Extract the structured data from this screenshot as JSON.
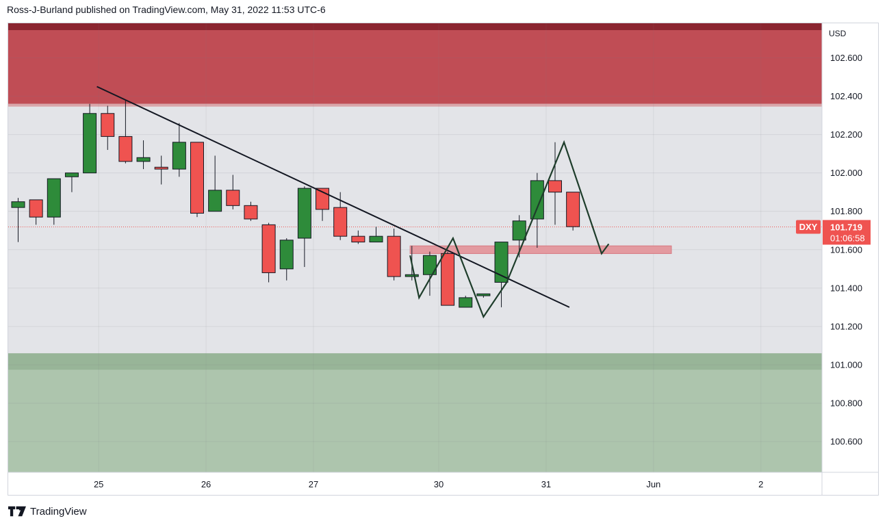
{
  "header": {
    "title": "Ross-J-Burland published on TradingView.com, May 31, 2022 11:53 UTC-6"
  },
  "footer": {
    "brand": "TradingView",
    "logo_icon": "tradingview-logo-icon"
  },
  "colors": {
    "up": "#2e8b3a",
    "down": "#ef5350",
    "wick": "#131722",
    "resistance_zone": "#c04d55",
    "resistance_top": "#8b2530",
    "support_zone": "#adc5ad",
    "support_top": "#98b598",
    "support_line_zone": "#e39aa0",
    "badge": "#ef5350",
    "plot_bg": "#e3e4e8"
  },
  "chart_data": {
    "type": "candlestick",
    "symbol": "DXY",
    "currency": "USD",
    "last_price": "101.719",
    "countdown": "01:06:58",
    "ylim": [
      100.44,
      102.78
    ],
    "y_ticks": [
      "102.600",
      "102.400",
      "102.200",
      "102.000",
      "101.800",
      "101.600",
      "101.400",
      "101.200",
      "101.000",
      "100.800",
      "100.600"
    ],
    "x_tick_labels": [
      "25",
      "26",
      "27",
      "30",
      "31",
      "Jun",
      "2"
    ],
    "x_tick_bar_index": [
      4.5,
      10.5,
      16.5,
      23.5,
      29.5,
      35.5,
      41.5
    ],
    "candles": [
      {
        "o": 101.82,
        "h": 101.87,
        "l": 101.64,
        "c": 101.85
      },
      {
        "o": 101.86,
        "h": 101.86,
        "l": 101.73,
        "c": 101.77
      },
      {
        "o": 101.77,
        "h": 101.97,
        "l": 101.73,
        "c": 101.97
      },
      {
        "o": 101.98,
        "h": 102.0,
        "l": 101.9,
        "c": 102.0
      },
      {
        "o": 102.0,
        "h": 102.36,
        "l": 102.0,
        "c": 102.31
      },
      {
        "o": 102.31,
        "h": 102.35,
        "l": 102.12,
        "c": 102.19
      },
      {
        "o": 102.19,
        "h": 102.38,
        "l": 102.05,
        "c": 102.06
      },
      {
        "o": 102.06,
        "h": 102.17,
        "l": 102.02,
        "c": 102.08
      },
      {
        "o": 102.03,
        "h": 102.09,
        "l": 101.94,
        "c": 102.02
      },
      {
        "o": 102.02,
        "h": 102.26,
        "l": 101.98,
        "c": 102.16
      },
      {
        "o": 102.16,
        "h": 102.16,
        "l": 101.77,
        "c": 101.79
      },
      {
        "o": 101.8,
        "h": 102.09,
        "l": 101.8,
        "c": 101.91
      },
      {
        "o": 101.91,
        "h": 101.99,
        "l": 101.81,
        "c": 101.83
      },
      {
        "o": 101.83,
        "h": 101.85,
        "l": 101.75,
        "c": 101.76
      },
      {
        "o": 101.73,
        "h": 101.74,
        "l": 101.43,
        "c": 101.48
      },
      {
        "o": 101.5,
        "h": 101.66,
        "l": 101.44,
        "c": 101.65
      },
      {
        "o": 101.66,
        "h": 101.93,
        "l": 101.51,
        "c": 101.92
      },
      {
        "o": 101.92,
        "h": 101.92,
        "l": 101.75,
        "c": 101.81
      },
      {
        "o": 101.82,
        "h": 101.9,
        "l": 101.65,
        "c": 101.67
      },
      {
        "o": 101.67,
        "h": 101.7,
        "l": 101.63,
        "c": 101.64
      },
      {
        "o": 101.64,
        "h": 101.72,
        "l": 101.64,
        "c": 101.67
      },
      {
        "o": 101.67,
        "h": 101.71,
        "l": 101.44,
        "c": 101.46
      },
      {
        "o": 101.46,
        "h": 101.62,
        "l": 101.44,
        "c": 101.47
      },
      {
        "o": 101.47,
        "h": 101.59,
        "l": 101.36,
        "c": 101.57
      },
      {
        "o": 101.58,
        "h": 101.59,
        "l": 101.31,
        "c": 101.31
      },
      {
        "o": 101.3,
        "h": 101.36,
        "l": 101.3,
        "c": 101.35
      },
      {
        "o": 101.36,
        "h": 101.37,
        "l": 101.35,
        "c": 101.37
      },
      {
        "o": 101.43,
        "h": 101.64,
        "l": 101.3,
        "c": 101.64
      },
      {
        "o": 101.65,
        "h": 101.78,
        "l": 101.56,
        "c": 101.75
      },
      {
        "o": 101.76,
        "h": 102.0,
        "l": 101.61,
        "c": 101.96
      },
      {
        "o": 101.96,
        "h": 102.16,
        "l": 101.73,
        "c": 101.9
      },
      {
        "o": 101.9,
        "h": 101.9,
        "l": 101.7,
        "c": 101.72
      }
    ],
    "zones": {
      "resistance": [
        102.36,
        102.78
      ],
      "support": [
        100.44,
        101.06
      ],
      "support_line": [
        101.58,
        101.62
      ]
    },
    "trendline": [
      [
        4.4,
        102.45
      ],
      [
        30.8,
        101.3
      ]
    ],
    "projection_path": [
      [
        21.9,
        101.57
      ],
      [
        22.4,
        101.35
      ],
      [
        24.3,
        101.66
      ],
      [
        26.0,
        101.25
      ],
      [
        27.3,
        101.43
      ],
      [
        30.5,
        102.16
      ],
      [
        32.6,
        101.58
      ],
      [
        33.0,
        101.63
      ]
    ]
  }
}
